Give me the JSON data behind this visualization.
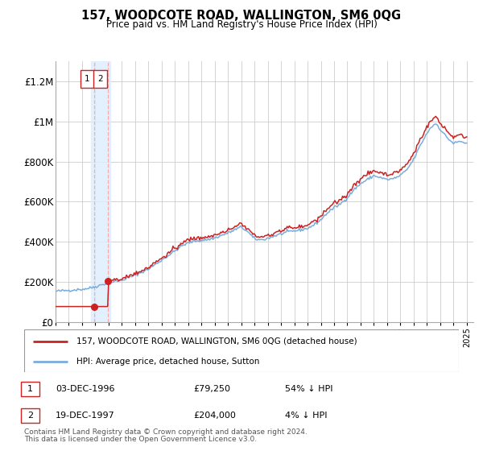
{
  "title": "157, WOODCOTE ROAD, WALLINGTON, SM6 0QG",
  "subtitle": "Price paid vs. HM Land Registry's House Price Index (HPI)",
  "legend_line1": "157, WOODCOTE ROAD, WALLINGTON, SM6 0QG (detached house)",
  "legend_line2": "HPI: Average price, detached house, Sutton",
  "sale1_date": "03-DEC-1996",
  "sale1_price": 79250,
  "sale1_price_str": "£79,250",
  "sale1_hpi_diff": "54% ↓ HPI",
  "sale2_date": "19-DEC-1997",
  "sale2_price": 204000,
  "sale2_price_str": "£204,000",
  "sale2_hpi_diff": "4% ↓ HPI",
  "footnote1": "Contains HM Land Registry data © Crown copyright and database right 2024.",
  "footnote2": "This data is licensed under the Open Government Licence v3.0.",
  "hpi_color": "#7aaddc",
  "price_color": "#cc2222",
  "dot_color": "#cc2222",
  "vband_color": "#ddeeff",
  "vline_color": "#ffaaaa",
  "grid_color": "#cccccc",
  "hatch_color": "#cccccc",
  "ylim_max": 1300000,
  "yticks": [
    0,
    200000,
    400000,
    600000,
    800000,
    1000000,
    1200000
  ],
  "ytick_labels": [
    "£0",
    "£200K",
    "£400K",
    "£600K",
    "£800K",
    "£1M",
    "£1.2M"
  ],
  "year_start": 1994,
  "year_end": 2025,
  "sale1_year": 1996.92,
  "sale2_year": 1997.96,
  "hpi_anchors_x": [
    1994.0,
    1995.0,
    1996.0,
    1996.5,
    1997.0,
    1997.5,
    1998.0,
    1999.0,
    2000.0,
    2001.0,
    2002.0,
    2003.0,
    2003.5,
    2004.0,
    2004.5,
    2005.0,
    2005.5,
    2006.0,
    2006.5,
    2007.0,
    2007.5,
    2008.0,
    2008.5,
    2009.0,
    2009.5,
    2010.0,
    2010.5,
    2011.0,
    2011.5,
    2012.0,
    2012.5,
    2013.0,
    2013.5,
    2014.0,
    2014.5,
    2015.0,
    2015.5,
    2016.0,
    2016.5,
    2017.0,
    2017.5,
    2018.0,
    2018.5,
    2019.0,
    2019.5,
    2020.0,
    2020.5,
    2021.0,
    2021.5,
    2022.0,
    2022.3,
    2022.7,
    2023.0,
    2023.5,
    2024.0,
    2024.5,
    2025.0
  ],
  "hpi_anchors_y": [
    155000,
    160000,
    165000,
    170000,
    178000,
    188000,
    198000,
    210000,
    235000,
    265000,
    310000,
    355000,
    380000,
    395000,
    405000,
    408000,
    412000,
    420000,
    432000,
    445000,
    460000,
    475000,
    450000,
    415000,
    410000,
    418000,
    430000,
    440000,
    450000,
    455000,
    460000,
    468000,
    485000,
    510000,
    545000,
    570000,
    590000,
    620000,
    660000,
    690000,
    710000,
    730000,
    720000,
    710000,
    715000,
    730000,
    760000,
    810000,
    880000,
    940000,
    970000,
    990000,
    960000,
    920000,
    890000,
    900000,
    890000
  ]
}
